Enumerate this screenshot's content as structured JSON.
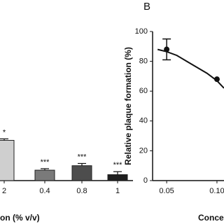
{
  "chart_data": [
    {
      "type": "bar",
      "categories": [
        "2",
        "0.4",
        "0.8",
        "1"
      ],
      "values": [
        27,
        7,
        10,
        4
      ],
      "errors": [
        1,
        1,
        1.5,
        2
      ],
      "annotations": [
        "*",
        "***",
        "***",
        "***"
      ],
      "colors": [
        "#cfcfcf",
        "#7a7a7a",
        "#4d4d4d",
        "#1e1e1e"
      ],
      "x_label": "on (% v/v)",
      "ylim": [
        0,
        100
      ]
    },
    {
      "type": "scatter",
      "panel_label": "B",
      "y_label": "Relative plaque formation (%)",
      "x_label": "Concer",
      "x": [
        0.05,
        0.1
      ],
      "values": [
        88,
        68
      ],
      "errors": [
        7,
        null
      ],
      "fit_x": [
        0.041,
        0.05,
        0.06,
        0.07,
        0.08,
        0.09,
        0.1,
        0.107
      ],
      "fit_values": [
        88,
        86.5,
        84,
        80,
        76,
        72,
        67,
        62
      ],
      "xlim": [
        0.036,
        0.107
      ],
      "ylim": [
        0,
        100
      ],
      "xticks": [
        0.05,
        {
          "value": 0.1,
          "label": "0.10"
        }
      ],
      "yticks": [
        0,
        20,
        40,
        60,
        80,
        100
      ]
    }
  ]
}
